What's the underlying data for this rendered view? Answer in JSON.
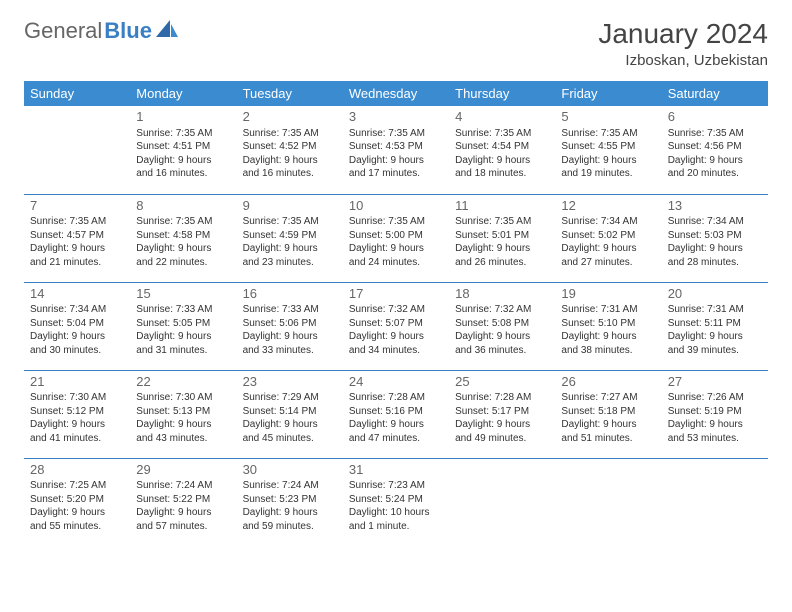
{
  "logo": {
    "part1": "General",
    "part2": "Blue"
  },
  "title": "January 2024",
  "location": "Izboskan, Uzbekistan",
  "dayHeaders": [
    "Sunday",
    "Monday",
    "Tuesday",
    "Wednesday",
    "Thursday",
    "Friday",
    "Saturday"
  ],
  "colors": {
    "headerBg": "#3a8bd0",
    "accent": "#3a7fc4",
    "text": "#333333",
    "background": "#ffffff"
  },
  "weeks": [
    [
      null,
      {
        "n": "1",
        "sr": "Sunrise: 7:35 AM",
        "ss": "Sunset: 4:51 PM",
        "d1": "Daylight: 9 hours",
        "d2": "and 16 minutes."
      },
      {
        "n": "2",
        "sr": "Sunrise: 7:35 AM",
        "ss": "Sunset: 4:52 PM",
        "d1": "Daylight: 9 hours",
        "d2": "and 16 minutes."
      },
      {
        "n": "3",
        "sr": "Sunrise: 7:35 AM",
        "ss": "Sunset: 4:53 PM",
        "d1": "Daylight: 9 hours",
        "d2": "and 17 minutes."
      },
      {
        "n": "4",
        "sr": "Sunrise: 7:35 AM",
        "ss": "Sunset: 4:54 PM",
        "d1": "Daylight: 9 hours",
        "d2": "and 18 minutes."
      },
      {
        "n": "5",
        "sr": "Sunrise: 7:35 AM",
        "ss": "Sunset: 4:55 PM",
        "d1": "Daylight: 9 hours",
        "d2": "and 19 minutes."
      },
      {
        "n": "6",
        "sr": "Sunrise: 7:35 AM",
        "ss": "Sunset: 4:56 PM",
        "d1": "Daylight: 9 hours",
        "d2": "and 20 minutes."
      }
    ],
    [
      {
        "n": "7",
        "sr": "Sunrise: 7:35 AM",
        "ss": "Sunset: 4:57 PM",
        "d1": "Daylight: 9 hours",
        "d2": "and 21 minutes."
      },
      {
        "n": "8",
        "sr": "Sunrise: 7:35 AM",
        "ss": "Sunset: 4:58 PM",
        "d1": "Daylight: 9 hours",
        "d2": "and 22 minutes."
      },
      {
        "n": "9",
        "sr": "Sunrise: 7:35 AM",
        "ss": "Sunset: 4:59 PM",
        "d1": "Daylight: 9 hours",
        "d2": "and 23 minutes."
      },
      {
        "n": "10",
        "sr": "Sunrise: 7:35 AM",
        "ss": "Sunset: 5:00 PM",
        "d1": "Daylight: 9 hours",
        "d2": "and 24 minutes."
      },
      {
        "n": "11",
        "sr": "Sunrise: 7:35 AM",
        "ss": "Sunset: 5:01 PM",
        "d1": "Daylight: 9 hours",
        "d2": "and 26 minutes."
      },
      {
        "n": "12",
        "sr": "Sunrise: 7:34 AM",
        "ss": "Sunset: 5:02 PM",
        "d1": "Daylight: 9 hours",
        "d2": "and 27 minutes."
      },
      {
        "n": "13",
        "sr": "Sunrise: 7:34 AM",
        "ss": "Sunset: 5:03 PM",
        "d1": "Daylight: 9 hours",
        "d2": "and 28 minutes."
      }
    ],
    [
      {
        "n": "14",
        "sr": "Sunrise: 7:34 AM",
        "ss": "Sunset: 5:04 PM",
        "d1": "Daylight: 9 hours",
        "d2": "and 30 minutes."
      },
      {
        "n": "15",
        "sr": "Sunrise: 7:33 AM",
        "ss": "Sunset: 5:05 PM",
        "d1": "Daylight: 9 hours",
        "d2": "and 31 minutes."
      },
      {
        "n": "16",
        "sr": "Sunrise: 7:33 AM",
        "ss": "Sunset: 5:06 PM",
        "d1": "Daylight: 9 hours",
        "d2": "and 33 minutes."
      },
      {
        "n": "17",
        "sr": "Sunrise: 7:32 AM",
        "ss": "Sunset: 5:07 PM",
        "d1": "Daylight: 9 hours",
        "d2": "and 34 minutes."
      },
      {
        "n": "18",
        "sr": "Sunrise: 7:32 AM",
        "ss": "Sunset: 5:08 PM",
        "d1": "Daylight: 9 hours",
        "d2": "and 36 minutes."
      },
      {
        "n": "19",
        "sr": "Sunrise: 7:31 AM",
        "ss": "Sunset: 5:10 PM",
        "d1": "Daylight: 9 hours",
        "d2": "and 38 minutes."
      },
      {
        "n": "20",
        "sr": "Sunrise: 7:31 AM",
        "ss": "Sunset: 5:11 PM",
        "d1": "Daylight: 9 hours",
        "d2": "and 39 minutes."
      }
    ],
    [
      {
        "n": "21",
        "sr": "Sunrise: 7:30 AM",
        "ss": "Sunset: 5:12 PM",
        "d1": "Daylight: 9 hours",
        "d2": "and 41 minutes."
      },
      {
        "n": "22",
        "sr": "Sunrise: 7:30 AM",
        "ss": "Sunset: 5:13 PM",
        "d1": "Daylight: 9 hours",
        "d2": "and 43 minutes."
      },
      {
        "n": "23",
        "sr": "Sunrise: 7:29 AM",
        "ss": "Sunset: 5:14 PM",
        "d1": "Daylight: 9 hours",
        "d2": "and 45 minutes."
      },
      {
        "n": "24",
        "sr": "Sunrise: 7:28 AM",
        "ss": "Sunset: 5:16 PM",
        "d1": "Daylight: 9 hours",
        "d2": "and 47 minutes."
      },
      {
        "n": "25",
        "sr": "Sunrise: 7:28 AM",
        "ss": "Sunset: 5:17 PM",
        "d1": "Daylight: 9 hours",
        "d2": "and 49 minutes."
      },
      {
        "n": "26",
        "sr": "Sunrise: 7:27 AM",
        "ss": "Sunset: 5:18 PM",
        "d1": "Daylight: 9 hours",
        "d2": "and 51 minutes."
      },
      {
        "n": "27",
        "sr": "Sunrise: 7:26 AM",
        "ss": "Sunset: 5:19 PM",
        "d1": "Daylight: 9 hours",
        "d2": "and 53 minutes."
      }
    ],
    [
      {
        "n": "28",
        "sr": "Sunrise: 7:25 AM",
        "ss": "Sunset: 5:20 PM",
        "d1": "Daylight: 9 hours",
        "d2": "and 55 minutes."
      },
      {
        "n": "29",
        "sr": "Sunrise: 7:24 AM",
        "ss": "Sunset: 5:22 PM",
        "d1": "Daylight: 9 hours",
        "d2": "and 57 minutes."
      },
      {
        "n": "30",
        "sr": "Sunrise: 7:24 AM",
        "ss": "Sunset: 5:23 PM",
        "d1": "Daylight: 9 hours",
        "d2": "and 59 minutes."
      },
      {
        "n": "31",
        "sr": "Sunrise: 7:23 AM",
        "ss": "Sunset: 5:24 PM",
        "d1": "Daylight: 10 hours",
        "d2": "and 1 minute."
      },
      null,
      null,
      null
    ]
  ]
}
